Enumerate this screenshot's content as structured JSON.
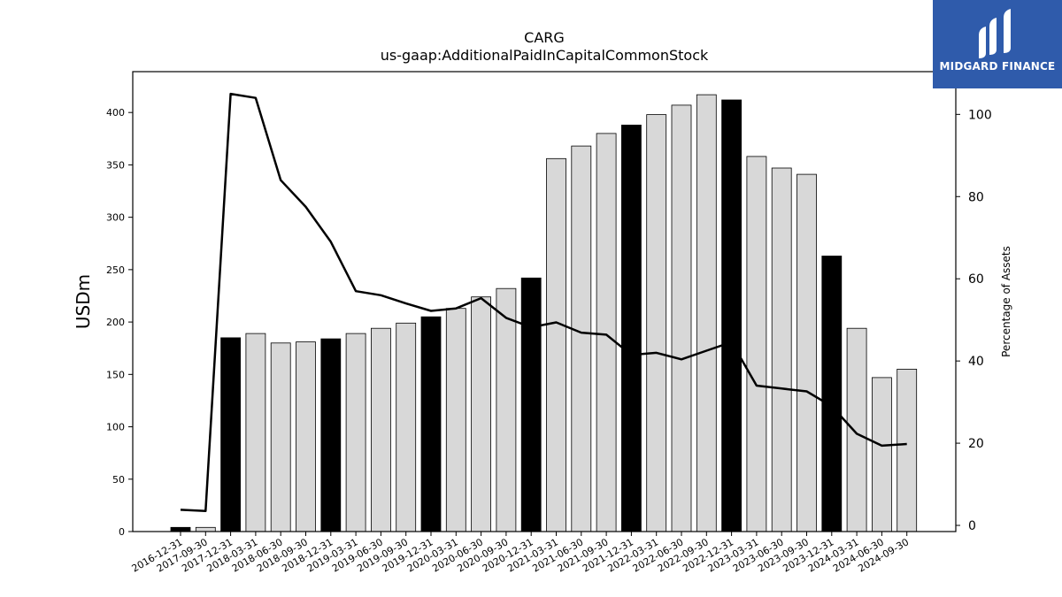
{
  "logo": {
    "text": "MIDGARD FINANCE"
  },
  "chart_data": {
    "type": "bar",
    "title": "CARG",
    "subtitle": "us-gaap:AdditionalPaidInCapitalCommonStock",
    "ylabel": "USDm",
    "y2label": "Percentage of Assets",
    "ylim": [
      0,
      439
    ],
    "y2lim": [
      -1.5,
      110.4
    ],
    "yticks": [
      0,
      50,
      100,
      150,
      200,
      250,
      300,
      350,
      400
    ],
    "y2ticks": [
      0,
      20,
      40,
      60,
      80,
      100
    ],
    "categories": [
      "2016-12-31",
      "2017-09-30",
      "2017-12-31",
      "2018-03-31",
      "2018-06-30",
      "2018-09-30",
      "2018-12-31",
      "2019-03-31",
      "2019-06-30",
      "2019-09-30",
      "2019-12-31",
      "2020-03-31",
      "2020-06-30",
      "2020-09-30",
      "2020-12-31",
      "2021-03-31",
      "2021-06-30",
      "2021-09-30",
      "2021-12-31",
      "2022-03-31",
      "2022-06-30",
      "2022-09-30",
      "2022-12-31",
      "2023-03-31",
      "2023-06-30",
      "2023-09-30",
      "2023-12-31",
      "2024-03-31",
      "2024-06-30",
      "2024-09-30"
    ],
    "series": [
      {
        "type": "bar",
        "values": [
          4,
          4,
          185,
          189,
          180,
          181,
          184,
          189,
          194,
          199,
          205,
          213,
          224,
          232,
          242,
          356,
          368,
          380,
          388,
          398,
          407,
          417,
          412,
          358,
          347,
          341,
          263,
          194,
          147,
          155
        ],
        "highlight": [
          true,
          false,
          true,
          false,
          false,
          false,
          true,
          false,
          false,
          false,
          true,
          false,
          false,
          false,
          true,
          false,
          false,
          false,
          true,
          false,
          false,
          false,
          true,
          false,
          false,
          false,
          true,
          false,
          false,
          false
        ],
        "color": "#d8d8d8",
        "highlight_color": "#000000"
      },
      {
        "type": "line",
        "axis": "right",
        "values": [
          3.8,
          3.5,
          105,
          104,
          84,
          77.5,
          69,
          57,
          56,
          54,
          52.2,
          52.8,
          55.3,
          50.5,
          48.2,
          49.4,
          46.9,
          46.4,
          41.5,
          42,
          40.4,
          42.5,
          44.6,
          34,
          33.3,
          32.6,
          29,
          22.3,
          19.4,
          19.8
        ],
        "color": "#000000"
      }
    ],
    "legend": "none",
    "grid": false
  }
}
